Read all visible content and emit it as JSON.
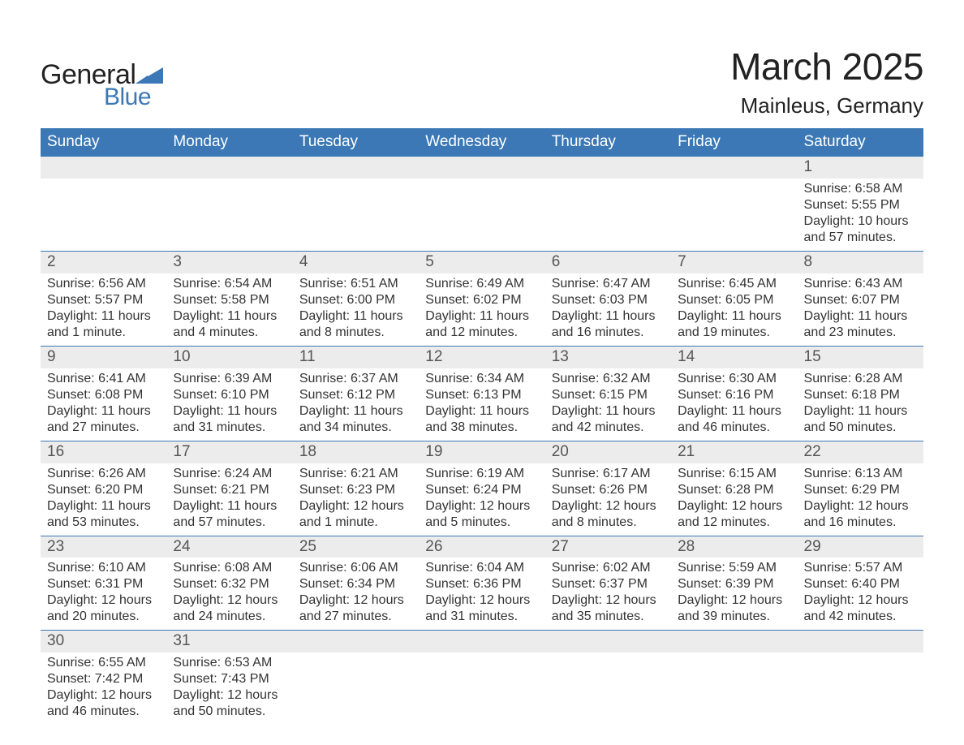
{
  "logo": {
    "word1": "General",
    "word2": "Blue",
    "triangle_color": "#3b78b5"
  },
  "title": "March 2025",
  "location": "Mainleus, Germany",
  "colors": {
    "header_bg": "#3b78b5",
    "header_text": "#ffffff",
    "daynum_bg": "#ececec",
    "row_border": "#3b78b5",
    "body_text": "#333333",
    "daynum_text": "#555555",
    "page_bg": "#ffffff"
  },
  "fonts": {
    "title_pt": 46,
    "location_pt": 26,
    "dayheader_pt": 19,
    "daynum_pt": 19,
    "detail_pt": 16
  },
  "day_headers": [
    "Sunday",
    "Monday",
    "Tuesday",
    "Wednesday",
    "Thursday",
    "Friday",
    "Saturday"
  ],
  "weeks": [
    [
      null,
      null,
      null,
      null,
      null,
      null,
      {
        "n": "1",
        "sr": "Sunrise: 6:58 AM",
        "ss": "Sunset: 5:55 PM",
        "d1": "Daylight: 10 hours",
        "d2": "and 57 minutes."
      }
    ],
    [
      {
        "n": "2",
        "sr": "Sunrise: 6:56 AM",
        "ss": "Sunset: 5:57 PM",
        "d1": "Daylight: 11 hours",
        "d2": "and 1 minute."
      },
      {
        "n": "3",
        "sr": "Sunrise: 6:54 AM",
        "ss": "Sunset: 5:58 PM",
        "d1": "Daylight: 11 hours",
        "d2": "and 4 minutes."
      },
      {
        "n": "4",
        "sr": "Sunrise: 6:51 AM",
        "ss": "Sunset: 6:00 PM",
        "d1": "Daylight: 11 hours",
        "d2": "and 8 minutes."
      },
      {
        "n": "5",
        "sr": "Sunrise: 6:49 AM",
        "ss": "Sunset: 6:02 PM",
        "d1": "Daylight: 11 hours",
        "d2": "and 12 minutes."
      },
      {
        "n": "6",
        "sr": "Sunrise: 6:47 AM",
        "ss": "Sunset: 6:03 PM",
        "d1": "Daylight: 11 hours",
        "d2": "and 16 minutes."
      },
      {
        "n": "7",
        "sr": "Sunrise: 6:45 AM",
        "ss": "Sunset: 6:05 PM",
        "d1": "Daylight: 11 hours",
        "d2": "and 19 minutes."
      },
      {
        "n": "8",
        "sr": "Sunrise: 6:43 AM",
        "ss": "Sunset: 6:07 PM",
        "d1": "Daylight: 11 hours",
        "d2": "and 23 minutes."
      }
    ],
    [
      {
        "n": "9",
        "sr": "Sunrise: 6:41 AM",
        "ss": "Sunset: 6:08 PM",
        "d1": "Daylight: 11 hours",
        "d2": "and 27 minutes."
      },
      {
        "n": "10",
        "sr": "Sunrise: 6:39 AM",
        "ss": "Sunset: 6:10 PM",
        "d1": "Daylight: 11 hours",
        "d2": "and 31 minutes."
      },
      {
        "n": "11",
        "sr": "Sunrise: 6:37 AM",
        "ss": "Sunset: 6:12 PM",
        "d1": "Daylight: 11 hours",
        "d2": "and 34 minutes."
      },
      {
        "n": "12",
        "sr": "Sunrise: 6:34 AM",
        "ss": "Sunset: 6:13 PM",
        "d1": "Daylight: 11 hours",
        "d2": "and 38 minutes."
      },
      {
        "n": "13",
        "sr": "Sunrise: 6:32 AM",
        "ss": "Sunset: 6:15 PM",
        "d1": "Daylight: 11 hours",
        "d2": "and 42 minutes."
      },
      {
        "n": "14",
        "sr": "Sunrise: 6:30 AM",
        "ss": "Sunset: 6:16 PM",
        "d1": "Daylight: 11 hours",
        "d2": "and 46 minutes."
      },
      {
        "n": "15",
        "sr": "Sunrise: 6:28 AM",
        "ss": "Sunset: 6:18 PM",
        "d1": "Daylight: 11 hours",
        "d2": "and 50 minutes."
      }
    ],
    [
      {
        "n": "16",
        "sr": "Sunrise: 6:26 AM",
        "ss": "Sunset: 6:20 PM",
        "d1": "Daylight: 11 hours",
        "d2": "and 53 minutes."
      },
      {
        "n": "17",
        "sr": "Sunrise: 6:24 AM",
        "ss": "Sunset: 6:21 PM",
        "d1": "Daylight: 11 hours",
        "d2": "and 57 minutes."
      },
      {
        "n": "18",
        "sr": "Sunrise: 6:21 AM",
        "ss": "Sunset: 6:23 PM",
        "d1": "Daylight: 12 hours",
        "d2": "and 1 minute."
      },
      {
        "n": "19",
        "sr": "Sunrise: 6:19 AM",
        "ss": "Sunset: 6:24 PM",
        "d1": "Daylight: 12 hours",
        "d2": "and 5 minutes."
      },
      {
        "n": "20",
        "sr": "Sunrise: 6:17 AM",
        "ss": "Sunset: 6:26 PM",
        "d1": "Daylight: 12 hours",
        "d2": "and 8 minutes."
      },
      {
        "n": "21",
        "sr": "Sunrise: 6:15 AM",
        "ss": "Sunset: 6:28 PM",
        "d1": "Daylight: 12 hours",
        "d2": "and 12 minutes."
      },
      {
        "n": "22",
        "sr": "Sunrise: 6:13 AM",
        "ss": "Sunset: 6:29 PM",
        "d1": "Daylight: 12 hours",
        "d2": "and 16 minutes."
      }
    ],
    [
      {
        "n": "23",
        "sr": "Sunrise: 6:10 AM",
        "ss": "Sunset: 6:31 PM",
        "d1": "Daylight: 12 hours",
        "d2": "and 20 minutes."
      },
      {
        "n": "24",
        "sr": "Sunrise: 6:08 AM",
        "ss": "Sunset: 6:32 PM",
        "d1": "Daylight: 12 hours",
        "d2": "and 24 minutes."
      },
      {
        "n": "25",
        "sr": "Sunrise: 6:06 AM",
        "ss": "Sunset: 6:34 PM",
        "d1": "Daylight: 12 hours",
        "d2": "and 27 minutes."
      },
      {
        "n": "26",
        "sr": "Sunrise: 6:04 AM",
        "ss": "Sunset: 6:36 PM",
        "d1": "Daylight: 12 hours",
        "d2": "and 31 minutes."
      },
      {
        "n": "27",
        "sr": "Sunrise: 6:02 AM",
        "ss": "Sunset: 6:37 PM",
        "d1": "Daylight: 12 hours",
        "d2": "and 35 minutes."
      },
      {
        "n": "28",
        "sr": "Sunrise: 5:59 AM",
        "ss": "Sunset: 6:39 PM",
        "d1": "Daylight: 12 hours",
        "d2": "and 39 minutes."
      },
      {
        "n": "29",
        "sr": "Sunrise: 5:57 AM",
        "ss": "Sunset: 6:40 PM",
        "d1": "Daylight: 12 hours",
        "d2": "and 42 minutes."
      }
    ],
    [
      {
        "n": "30",
        "sr": "Sunrise: 6:55 AM",
        "ss": "Sunset: 7:42 PM",
        "d1": "Daylight: 12 hours",
        "d2": "and 46 minutes."
      },
      {
        "n": "31",
        "sr": "Sunrise: 6:53 AM",
        "ss": "Sunset: 7:43 PM",
        "d1": "Daylight: 12 hours",
        "d2": "and 50 minutes."
      },
      null,
      null,
      null,
      null,
      null
    ]
  ]
}
